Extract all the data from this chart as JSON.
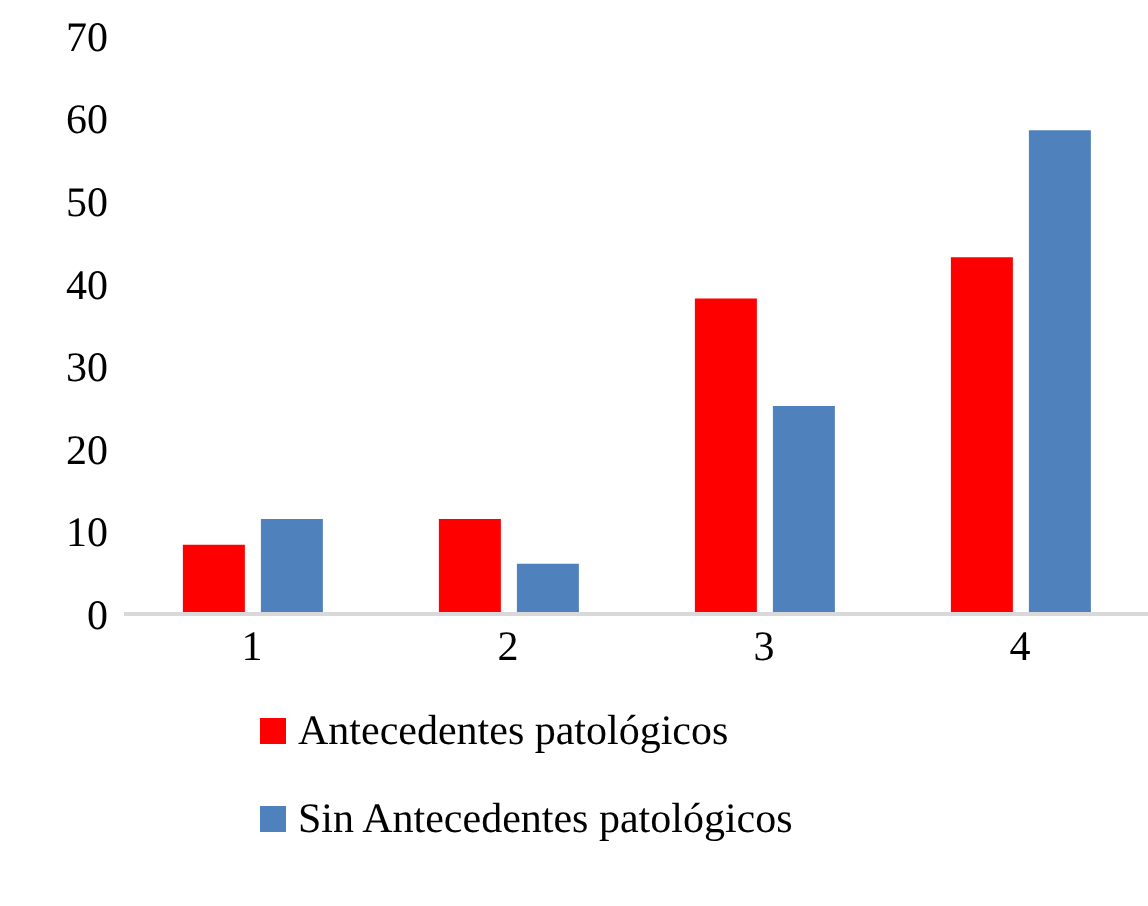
{
  "chart_data": {
    "type": "bar",
    "categories": [
      "1",
      "2",
      "3",
      "4"
    ],
    "series": [
      {
        "name": "Antecedentes patológicos",
        "color": "#ff0000",
        "values": [
          8.4,
          11.5,
          38.2,
          43.2
        ]
      },
      {
        "name": "Sin Antecedentes patológicos",
        "color": "#4f81bd",
        "values": [
          11.5,
          6.1,
          25.2,
          58.6
        ]
      }
    ],
    "ylim": [
      0,
      70
    ],
    "yticks": [
      0,
      10,
      20,
      30,
      40,
      50,
      60,
      70
    ],
    "grid": false,
    "legend": "bottom"
  }
}
